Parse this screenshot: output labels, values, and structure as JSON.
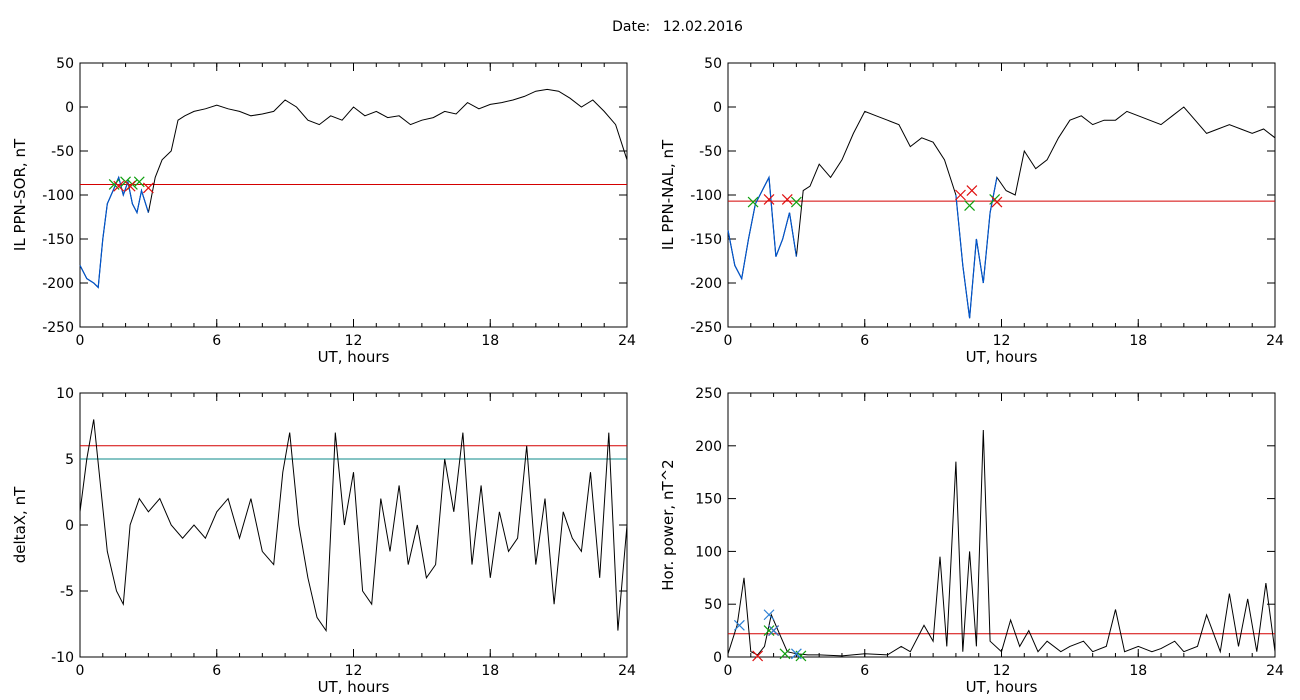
{
  "figure": {
    "date_label": "Date:",
    "date_value": "12.02.2016"
  },
  "colors": {
    "trace": "#000000",
    "highlight": "#0055cc",
    "threshold_red": "#d40000",
    "threshold_teal": "#0b8a8a",
    "marker_red": "#e01010",
    "marker_green": "#10a010",
    "marker_blue": "#2a7fd4"
  },
  "chart_data": [
    {
      "id": "il-sor",
      "type": "line",
      "xlabel": "UT, hours",
      "ylabel": "IL PPN-SOR, nT",
      "xlim": [
        0,
        24
      ],
      "ylim": [
        -250,
        50
      ],
      "xticks": [
        0,
        6,
        12,
        18,
        24
      ],
      "yticks": [
        50,
        0,
        -50,
        -100,
        -150,
        -200,
        -250
      ],
      "x": [
        0,
        0.3,
        0.6,
        0.8,
        1.0,
        1.2,
        1.5,
        1.7,
        1.9,
        2.1,
        2.3,
        2.5,
        2.7,
        3.0,
        3.3,
        3.6,
        4.0,
        4.3,
        4.6,
        5.0,
        5.5,
        6.0,
        6.5,
        7.0,
        7.5,
        8.0,
        8.5,
        9.0,
        9.5,
        10.0,
        10.5,
        11.0,
        11.5,
        12.0,
        12.5,
        13.0,
        13.5,
        14.0,
        14.5,
        15.0,
        15.5,
        16.0,
        16.5,
        17.0,
        17.5,
        18.0,
        18.5,
        19.0,
        19.5,
        20.0,
        20.5,
        21.0,
        21.5,
        22.0,
        22.5,
        23.0,
        23.5,
        24.0
      ],
      "values": [
        -180,
        -195,
        -200,
        -205,
        -150,
        -110,
        -92,
        -80,
        -100,
        -85,
        -110,
        -120,
        -95,
        -120,
        -80,
        -60,
        -50,
        -15,
        -10,
        -5,
        -2,
        2,
        -2,
        -5,
        -10,
        -8,
        -5,
        8,
        0,
        -15,
        -20,
        -10,
        -15,
        0,
        -10,
        -5,
        -12,
        -10,
        -20,
        -15,
        -12,
        -5,
        -8,
        5,
        -2,
        3,
        5,
        8,
        12,
        18,
        20,
        18,
        10,
        0,
        8,
        -5,
        -20,
        -60
      ],
      "threshold_red": -88,
      "highlight_range": [
        0,
        3.0
      ],
      "markers_red_x": [
        1.7,
        2.2,
        3.0
      ],
      "markers_red_y": [
        -90,
        -90,
        -92
      ],
      "markers_green_x": [
        1.5,
        2.0,
        2.3,
        2.6
      ],
      "markers_green_y": [
        -88,
        -85,
        -88,
        -85
      ]
    },
    {
      "id": "il-nal",
      "type": "line",
      "xlabel": "UT, hours",
      "ylabel": "IL PPN-NAL, nT",
      "xlim": [
        0,
        24
      ],
      "ylim": [
        -250,
        50
      ],
      "xticks": [
        0,
        6,
        12,
        18,
        24
      ],
      "yticks": [
        50,
        0,
        -50,
        -100,
        -150,
        -200,
        -250
      ],
      "x": [
        0,
        0.3,
        0.6,
        0.9,
        1.2,
        1.5,
        1.8,
        2.1,
        2.4,
        2.7,
        3.0,
        3.3,
        3.6,
        4.0,
        4.5,
        5.0,
        5.5,
        6.0,
        6.5,
        7.0,
        7.5,
        8.0,
        8.5,
        9.0,
        9.5,
        10.0,
        10.3,
        10.6,
        10.9,
        11.2,
        11.5,
        11.8,
        12.2,
        12.6,
        13.0,
        13.5,
        14.0,
        14.5,
        15.0,
        15.5,
        16.0,
        16.5,
        17.0,
        17.5,
        18.0,
        18.5,
        19.0,
        19.5,
        20.0,
        20.5,
        21.0,
        21.5,
        22.0,
        22.5,
        23.0,
        23.5,
        24.0
      ],
      "values": [
        -140,
        -180,
        -195,
        -150,
        -110,
        -95,
        -80,
        -170,
        -150,
        -120,
        -170,
        -95,
        -90,
        -65,
        -80,
        -60,
        -30,
        -5,
        -10,
        -15,
        -20,
        -45,
        -35,
        -40,
        -60,
        -100,
        -180,
        -240,
        -150,
        -200,
        -120,
        -80,
        -95,
        -100,
        -50,
        -70,
        -60,
        -35,
        -15,
        -10,
        -20,
        -15,
        -15,
        -5,
        -10,
        -15,
        -20,
        -10,
        0,
        -15,
        -30,
        -25,
        -20,
        -25,
        -30,
        -25,
        -35
      ],
      "threshold_red": -107,
      "highlight_ranges": [
        [
          0,
          3.0
        ],
        [
          10.0,
          12.0
        ]
      ],
      "markers_red_x": [
        1.8,
        2.6,
        10.2,
        10.7,
        11.8
      ],
      "markers_red_y": [
        -105,
        -105,
        -100,
        -95,
        -108
      ],
      "markers_green_x": [
        1.1,
        3.0,
        10.6,
        11.7
      ],
      "markers_green_y": [
        -108,
        -108,
        -112,
        -105
      ]
    },
    {
      "id": "deltax",
      "type": "line",
      "xlabel": "UT, hours",
      "ylabel": "deltaX, nT",
      "xlim": [
        0,
        24
      ],
      "ylim": [
        -10,
        10
      ],
      "xticks": [
        0,
        6,
        12,
        18,
        24
      ],
      "yticks": [
        10,
        5,
        0,
        -5,
        -10
      ],
      "x": [
        0,
        0.3,
        0.6,
        0.9,
        1.2,
        1.6,
        1.9,
        2.2,
        2.6,
        3.0,
        3.5,
        4.0,
        4.5,
        5.0,
        5.5,
        6.0,
        6.5,
        7.0,
        7.5,
        8.0,
        8.5,
        8.9,
        9.2,
        9.6,
        10.0,
        10.4,
        10.8,
        11.2,
        11.6,
        12.0,
        12.4,
        12.8,
        13.2,
        13.6,
        14.0,
        14.4,
        14.8,
        15.2,
        15.6,
        16.0,
        16.4,
        16.8,
        17.2,
        17.6,
        18.0,
        18.4,
        18.8,
        19.2,
        19.6,
        20.0,
        20.4,
        20.8,
        21.2,
        21.6,
        22.0,
        22.4,
        22.8,
        23.2,
        23.6,
        24.0
      ],
      "values": [
        1,
        5,
        8,
        3,
        -2,
        -5,
        -6,
        0,
        2,
        1,
        2,
        0,
        -1,
        0,
        -1,
        1,
        2,
        -1,
        2,
        -2,
        -3,
        4,
        7,
        0,
        -4,
        -7,
        -8,
        7,
        0,
        4,
        -5,
        -6,
        2,
        -2,
        3,
        -3,
        0,
        -4,
        -3,
        5,
        1,
        7,
        -3,
        3,
        -4,
        1,
        -2,
        -1,
        6,
        -3,
        2,
        -6,
        1,
        -1,
        -2,
        4,
        -4,
        7,
        -8,
        0
      ],
      "threshold_red": 6,
      "threshold_teal": 5
    },
    {
      "id": "hor-power",
      "type": "line",
      "xlabel": "UT, hours",
      "ylabel": "Hor. power, nT^2",
      "xlim": [
        0,
        24
      ],
      "ylim": [
        0,
        250
      ],
      "xticks": [
        0,
        6,
        12,
        18,
        24
      ],
      "yticks": [
        250,
        200,
        150,
        100,
        50,
        0
      ],
      "x": [
        0,
        0.4,
        0.7,
        1.0,
        1.3,
        1.6,
        1.9,
        2.2,
        2.6,
        3.0,
        3.5,
        4.0,
        5.0,
        6.0,
        7.0,
        7.6,
        8.0,
        8.6,
        9.0,
        9.3,
        9.6,
        10.0,
        10.3,
        10.6,
        10.9,
        11.2,
        11.5,
        12.0,
        12.4,
        12.8,
        13.2,
        13.6,
        14.0,
        14.6,
        15.0,
        15.6,
        16.0,
        16.6,
        17.0,
        17.4,
        18.0,
        18.6,
        19.0,
        19.6,
        20.0,
        20.6,
        21.0,
        21.6,
        22.0,
        22.4,
        22.8,
        23.2,
        23.6,
        24.0
      ],
      "values": [
        3,
        30,
        75,
        5,
        2,
        10,
        40,
        25,
        5,
        3,
        2,
        2,
        1,
        3,
        2,
        10,
        5,
        30,
        15,
        95,
        10,
        185,
        5,
        100,
        10,
        215,
        15,
        5,
        35,
        10,
        25,
        5,
        15,
        5,
        10,
        15,
        5,
        10,
        45,
        5,
        10,
        5,
        8,
        15,
        5,
        10,
        40,
        5,
        60,
        10,
        55,
        5,
        70,
        5
      ],
      "threshold_red": 22,
      "markers_blue_x": [
        0.5,
        1.8,
        2.0,
        3.0
      ],
      "markers_blue_y": [
        30,
        40,
        25,
        3
      ],
      "markers_red_x": [
        1.3,
        2.0
      ],
      "markers_red_y": [
        1,
        25
      ],
      "markers_green_x": [
        1.8,
        2.5,
        3.2
      ],
      "markers_green_y": [
        25,
        3,
        1
      ]
    }
  ]
}
